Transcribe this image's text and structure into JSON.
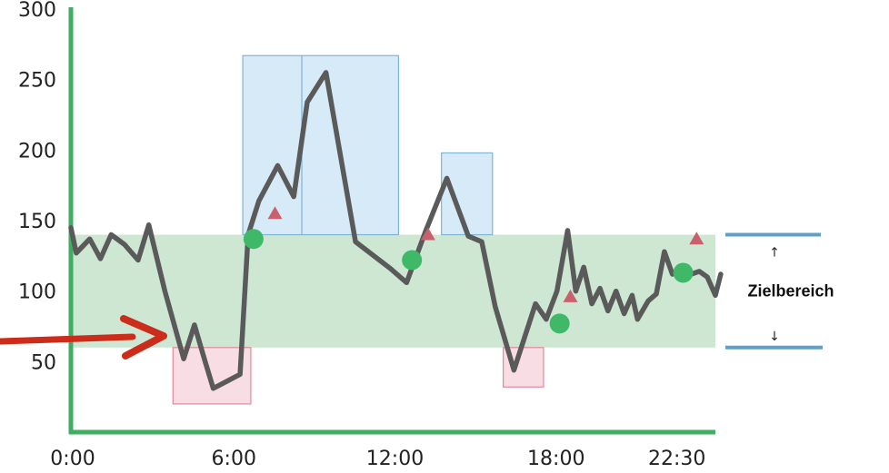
{
  "chart_data": {
    "type": "line",
    "title": "",
    "xlabel": "",
    "ylabel": "",
    "xlim_hours": [
      0,
      24
    ],
    "ylim": [
      0,
      300
    ],
    "x_ticks": [
      {
        "hour": 0,
        "label": "0:00"
      },
      {
        "hour": 6,
        "label": "6:00"
      },
      {
        "hour": 12,
        "label": "12:00"
      },
      {
        "hour": 18,
        "label": "18:00"
      },
      {
        "hour": 22.5,
        "label": "22:30"
      }
    ],
    "y_ticks": [
      50,
      100,
      150,
      200,
      250,
      300
    ],
    "target_range": {
      "low": 60,
      "high": 140,
      "label": "Zielbereich",
      "up_glyph": "↑",
      "down_glyph": "↓"
    },
    "series": [
      {
        "x": [
          0,
          0.2,
          0.7,
          1.1,
          1.5,
          2.0,
          2.5,
          2.9,
          3.5,
          4.2,
          4.6,
          5.0,
          5.3,
          6.3,
          6.6,
          7.0,
          7.7,
          8.3,
          8.8,
          9.5,
          10.6,
          11.9,
          12.5,
          13.2,
          14.0,
          14.8,
          15.3,
          15.8,
          16.5,
          17.3,
          17.7,
          18.1,
          18.5,
          18.8,
          19.1,
          19.4,
          19.7,
          20.0,
          20.3,
          20.6,
          20.9,
          21.1,
          21.5,
          21.8,
          22.1,
          22.4,
          22.8,
          23.1,
          23.4,
          23.7,
          24.0,
          24.2
        ],
        "y": [
          145,
          127,
          137,
          123,
          140,
          133,
          122,
          147,
          100,
          52,
          76,
          50,
          31,
          41,
          140,
          164,
          189,
          167,
          234,
          255,
          135,
          116,
          106,
          142,
          180,
          139,
          135,
          89,
          44,
          91,
          80,
          100,
          143,
          100,
          117,
          91,
          102,
          86,
          100,
          84,
          97,
          80,
          93,
          98,
          128,
          112,
          118,
          112,
          114,
          110,
          97,
          112
        ]
      }
    ],
    "high_boxes": [
      {
        "x0": 6.4,
        "x1": 8.6,
        "y0": 140,
        "y1": 267
      },
      {
        "x0": 8.6,
        "x1": 12.2,
        "y0": 140,
        "y1": 267
      },
      {
        "x0": 13.8,
        "x1": 15.7,
        "y0": 140,
        "y1": 198
      }
    ],
    "low_boxes": [
      {
        "x0": 3.8,
        "x1": 6.7,
        "y0": 20,
        "y1": 60
      },
      {
        "x0": 16.1,
        "x1": 17.6,
        "y0": 32,
        "y1": 60
      }
    ],
    "event_points": [
      {
        "x": 6.8,
        "y": 137
      },
      {
        "x": 12.7,
        "y": 122
      },
      {
        "x": 18.2,
        "y": 77
      },
      {
        "x": 22.8,
        "y": 113
      }
    ],
    "triangle_markers": [
      {
        "x": 7.6,
        "y": 155
      },
      {
        "x": 13.3,
        "y": 140
      },
      {
        "x": 18.6,
        "y": 96
      },
      {
        "x": 23.3,
        "y": 137
      }
    ],
    "colors": {
      "axis": "#3fae63",
      "line": "#5a5a5a",
      "target_fill": "#cde7d3",
      "high_fill": "#d7eaf8",
      "high_stroke": "#7fb4d9",
      "low_fill": "#f8dde4",
      "low_stroke": "#e08a9c",
      "point": "#3fb868",
      "triangle": "#c9606e",
      "range_bar": "#5f9fc9",
      "callout_arrow": "#cc2c1a"
    }
  }
}
